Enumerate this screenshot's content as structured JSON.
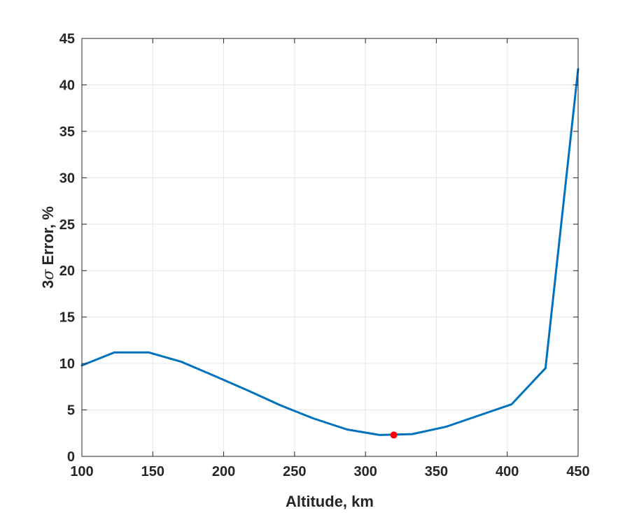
{
  "chart_data": {
    "type": "line",
    "title": "",
    "xlabel": "Altitude, km",
    "ylabel_prefix": "3",
    "ylabel_symbol": "σ",
    "ylabel_suffix": " Error, %",
    "xlim": [
      100,
      450
    ],
    "ylim": [
      0,
      45
    ],
    "xticks": [
      100,
      150,
      200,
      250,
      300,
      350,
      400,
      450
    ],
    "yticks": [
      0,
      5,
      10,
      15,
      20,
      25,
      30,
      35,
      40,
      45
    ],
    "grid": true,
    "series": [
      {
        "color": "#0072BD",
        "x": [
          100,
          123,
          147,
          170,
          193,
          217,
          240,
          263,
          287,
          310,
          333,
          357,
          380,
          403,
          427,
          450
        ],
        "y": [
          9.8,
          11.2,
          11.2,
          10.2,
          8.7,
          7.1,
          5.5,
          4.1,
          2.9,
          2.3,
          2.4,
          3.2,
          4.4,
          5.6,
          9.5,
          41.7
        ]
      }
    ],
    "marker": {
      "x": 320,
      "y": 2.3,
      "color": "#FF0000"
    }
  }
}
